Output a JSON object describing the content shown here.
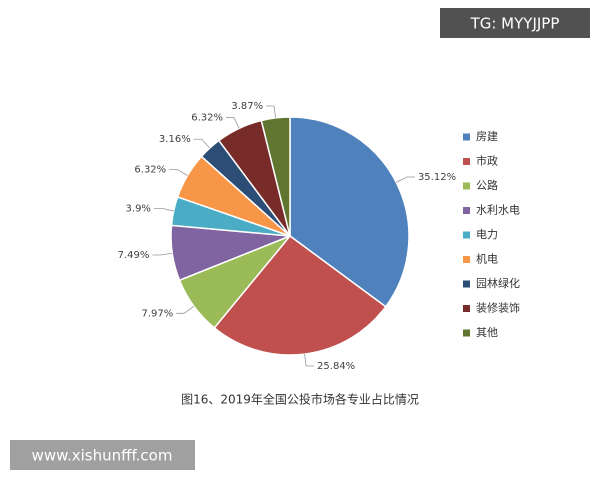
{
  "chart_data": {
    "type": "pie",
    "title": "图16、2019年全国公投市场各专业占比情况",
    "categories": [
      "房建",
      "市政",
      "公路",
      "水利水电",
      "电力",
      "机电",
      "园林绿化",
      "装修装饰",
      "其他"
    ],
    "values": [
      35.12,
      25.84,
      7.97,
      7.49,
      3.9,
      6.32,
      3.16,
      6.32,
      3.87
    ],
    "value_labels": [
      "35.12%",
      "25.84%",
      "7.97%",
      "7.49%",
      "3.9%",
      "6.32%",
      "3.16%",
      "6.32%",
      "3.87%"
    ],
    "colors": [
      "#4f81bd",
      "#c0504d",
      "#9bbb59",
      "#8064a2",
      "#4bacc6",
      "#f79646",
      "#2c4d75",
      "#772c2a",
      "#5f7530"
    ]
  },
  "watermarks": [
    "TG: MYYJJPP",
    "www.xishunfff.com"
  ]
}
